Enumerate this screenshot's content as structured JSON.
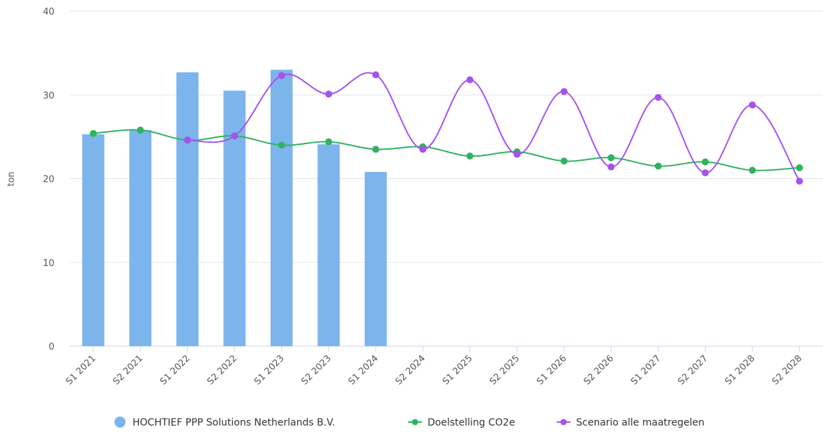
{
  "chart_data": {
    "type": "bar-line",
    "y_axis_label": "ton",
    "categories": [
      "S1 2021",
      "S2 2021",
      "S1 2022",
      "S2 2022",
      "S1 2023",
      "S2 2023",
      "S1 2024",
      "S2 2024",
      "S1 2025",
      "S2 2025",
      "S1 2026",
      "S2 2026",
      "S1 2027",
      "S2 2027",
      "S1 2028",
      "S2 2028"
    ],
    "series": [
      {
        "name": "HOCHTIEF PPP Solutions Netherlands B.V.",
        "type": "bar",
        "color": "#7cb5ec",
        "values": [
          25.3,
          25.8,
          32.7,
          30.5,
          33.0,
          24.1,
          20.8,
          null,
          null,
          null,
          null,
          null,
          null,
          null,
          null,
          null
        ]
      },
      {
        "name": "Doelstelling CO2e",
        "type": "line",
        "color": "#2fb35f",
        "values": [
          25.4,
          25.8,
          24.6,
          25.1,
          24.0,
          24.4,
          23.5,
          23.8,
          22.7,
          23.2,
          22.1,
          22.5,
          21.5,
          22.0,
          21.0,
          21.3
        ]
      },
      {
        "name": "Scenario alle maatregelen",
        "type": "line",
        "color": "#a552ee",
        "values": [
          null,
          null,
          24.6,
          25.1,
          32.3,
          30.1,
          32.4,
          23.5,
          31.8,
          22.9,
          30.4,
          21.4,
          29.7,
          20.7,
          28.8,
          19.7
        ]
      }
    ],
    "ylim": [
      0,
      40
    ],
    "yticks": [
      0,
      10,
      20,
      30,
      40
    ],
    "grid": true
  }
}
